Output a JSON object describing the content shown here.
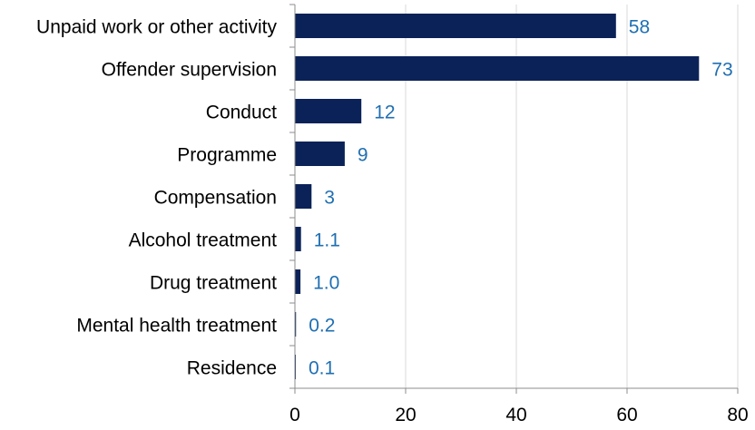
{
  "chart_data": {
    "type": "bar",
    "orientation": "horizontal",
    "title": "",
    "xlabel": "",
    "ylabel": "",
    "categories": [
      "Unpaid work or other activity",
      "Offender supervision",
      "Conduct",
      "Programme",
      "Compensation",
      "Alcohol treatment",
      "Drug treatment",
      "Mental health treatment",
      "Residence"
    ],
    "values": [
      58,
      73,
      12,
      9,
      3,
      1.1,
      1.0,
      0.2,
      0.1
    ],
    "data_labels": [
      "58",
      "73",
      "12",
      "9",
      "3",
      "1.1",
      "1.0",
      "0.2",
      "0.1"
    ],
    "xlim": [
      0,
      80
    ],
    "xticks": [
      0,
      20,
      40,
      60,
      80
    ],
    "xtick_labels": [
      "0",
      "20",
      "40",
      "60",
      "80"
    ],
    "grid": "vertical",
    "legend": "none"
  },
  "colors": {
    "bar": "#0b2258",
    "data_label": "#1f6fb2",
    "grid": "#d9d9d9",
    "axis": "#8c8c8c"
  }
}
